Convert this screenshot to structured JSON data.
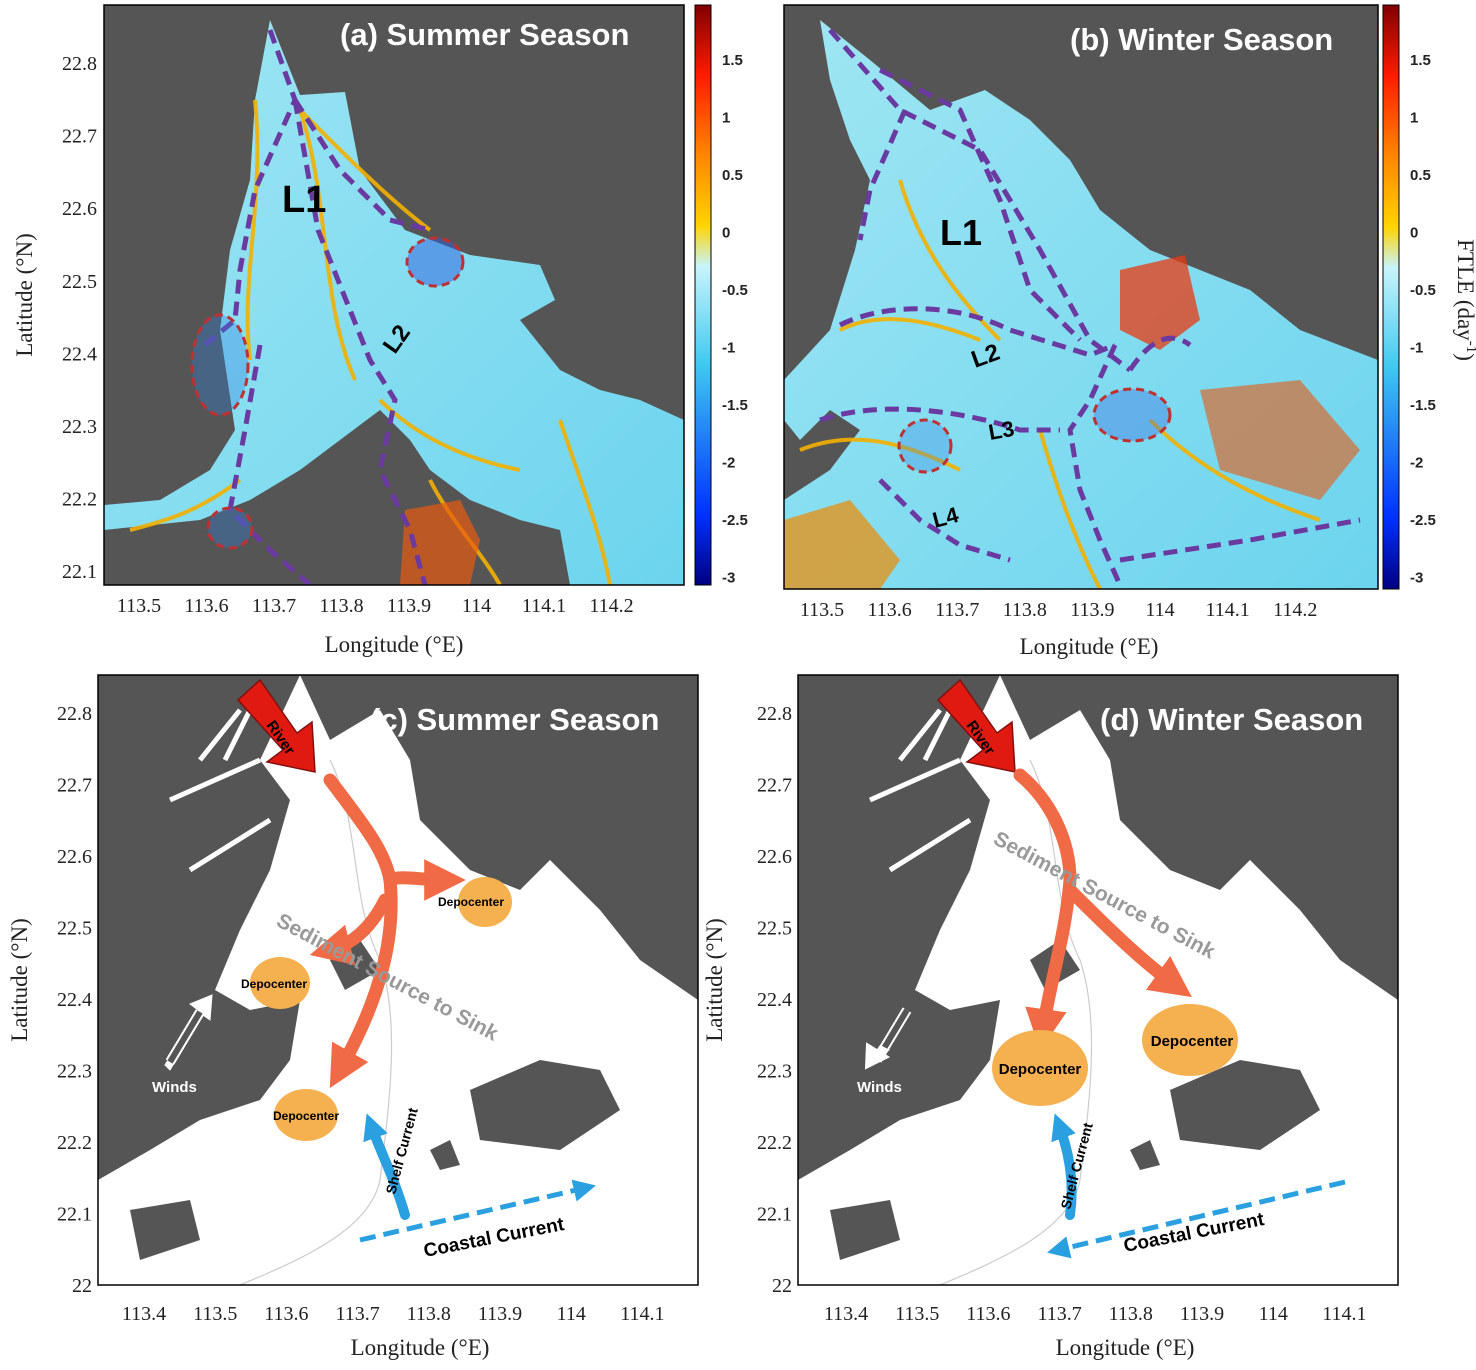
{
  "panels": {
    "a": {
      "title": "(a) Summer Season",
      "labels": [
        "L1",
        "L2"
      ]
    },
    "b": {
      "title": "(b) Winter Season",
      "labels": [
        "L1",
        "L2",
        "L3",
        "L4"
      ]
    },
    "c": {
      "title": "(c) Summer Season",
      "river": "River",
      "winds": "Winds",
      "source_sink": "Sediment Source to Sink",
      "depocenters": [
        "Depocenter",
        "Depocenter",
        "Depocenter"
      ],
      "shelf_current": "Shelf Current",
      "coastal_current": "Coastal Current"
    },
    "d": {
      "title": "(d) Winter Season",
      "river": "River",
      "winds": "Winds",
      "source_sink": "Sediment Source to Sink",
      "depocenters": [
        "Depocenter",
        "Depocenter"
      ],
      "shelf_current": "Shelf Current",
      "coastal_current": "Coastal Current"
    }
  },
  "axes": {
    "top": {
      "xlabel": "Longitude (°E)",
      "ylabel": "Latitude (°N)",
      "xticks": [
        "113.5",
        "113.6",
        "113.7",
        "113.8",
        "113.9",
        "114",
        "114.1",
        "114.2"
      ],
      "yticks": [
        "22.8",
        "22.7",
        "22.6",
        "22.5",
        "22.4",
        "22.3",
        "22.2",
        "22.1"
      ]
    },
    "bottom": {
      "xlabel": "Longitude (°E)",
      "ylabel": "Latitude (°N)",
      "xticks": [
        "113.4",
        "113.5",
        "113.6",
        "113.7",
        "113.8",
        "113.9",
        "114",
        "114.1"
      ],
      "yticks": [
        "22.8",
        "22.7",
        "22.6",
        "22.5",
        "22.4",
        "22.3",
        "22.2",
        "22.1",
        "22"
      ]
    }
  },
  "colorbar": {
    "label": "FTLE (day-1)",
    "label_main": "FTLE (day",
    "label_sup": "-1",
    "label_end": ")",
    "ticks": [
      "1.5",
      "1",
      "0.5",
      "0",
      "-0.5",
      "-1",
      "-1.5",
      "-2",
      "-2.5",
      "-3"
    ],
    "range": [
      -3,
      1.9
    ]
  },
  "colors": {
    "land": "#555555",
    "water_low": "#7fdcf0",
    "ftle_ridge": "#f3b000",
    "lcs_line": "#6a3aa0",
    "eddy": "#c03030",
    "sediment_arrow": "#f06a45",
    "depocenter": "#f5b050",
    "river_arrow": "#e01a10",
    "current": "#2aa0e0"
  }
}
